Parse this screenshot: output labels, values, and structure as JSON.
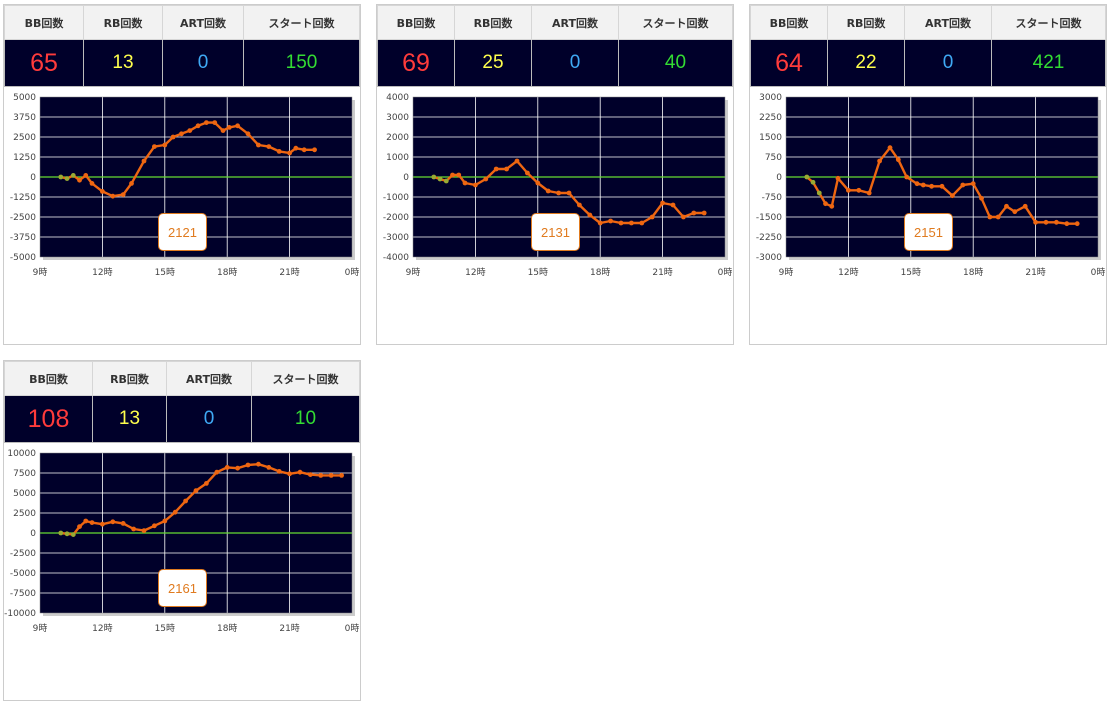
{
  "headers": [
    "BB回数",
    "RB回数",
    "ART回数",
    "スタート回数"
  ],
  "colors": {
    "plot_bg": "#00002a",
    "grid": "#ffffff",
    "zero_line": "#66dd33",
    "series": "#ee6611",
    "series_start": "#99aa33",
    "bb": "#ff3b3b",
    "rb": "#ffff4d",
    "art": "#3fa9f5",
    "start": "#33dd33",
    "button": "#e07b1f"
  },
  "panels": [
    {
      "machine": "2121",
      "stats": {
        "bb": "65",
        "rb": "13",
        "art": "0",
        "start": "150"
      },
      "chart_data": {
        "type": "line",
        "ylim": [
          -5000,
          5000
        ],
        "yticks": [
          "5000",
          "3750",
          "2500",
          "1250",
          "0",
          "-1250",
          "-2500",
          "-3750",
          "-5000"
        ],
        "xticks": [
          "9時",
          "12時",
          "15時",
          "18時",
          "21時",
          "0時"
        ],
        "x": [
          10.0,
          10.3,
          10.6,
          10.9,
          11.2,
          11.5,
          12.0,
          12.5,
          13.0,
          13.4,
          14.0,
          14.5,
          15.0,
          15.4,
          15.8,
          16.2,
          16.6,
          17.0,
          17.4,
          17.8,
          18.1,
          18.5,
          19.0,
          19.5,
          20.0,
          20.5,
          21.0,
          21.3,
          21.7,
          22.2
        ],
        "y": [
          0,
          -100,
          100,
          -200,
          100,
          -400,
          -900,
          -1200,
          -1100,
          -400,
          1000,
          1900,
          2000,
          2500,
          2700,
          2900,
          3200,
          3400,
          3400,
          2900,
          3100,
          3200,
          2700,
          2000,
          1900,
          1600,
          1500,
          1800,
          1700,
          1700
        ]
      }
    },
    {
      "machine": "2131",
      "stats": {
        "bb": "69",
        "rb": "25",
        "art": "0",
        "start": "40"
      },
      "chart_data": {
        "type": "line",
        "ylim": [
          -4000,
          4000
        ],
        "yticks": [
          "4000",
          "3000",
          "2000",
          "1000",
          "0",
          "-1000",
          "-2000",
          "-3000",
          "-4000"
        ],
        "xticks": [
          "9時",
          "12時",
          "15時",
          "18時",
          "21時",
          "0時"
        ],
        "x": [
          10.0,
          10.3,
          10.6,
          10.9,
          11.2,
          11.5,
          12.0,
          12.5,
          13.0,
          13.5,
          14.0,
          14.5,
          15.0,
          15.5,
          16.0,
          16.5,
          17.0,
          17.5,
          18.0,
          18.5,
          19.0,
          19.5,
          20.0,
          20.5,
          21.0,
          21.5,
          22.0,
          22.5,
          23.0
        ],
        "y": [
          0,
          -100,
          -200,
          100,
          100,
          -300,
          -400,
          -100,
          400,
          400,
          800,
          200,
          -300,
          -700,
          -800,
          -800,
          -1400,
          -1900,
          -2300,
          -2200,
          -2300,
          -2300,
          -2300,
          -2000,
          -1300,
          -1400,
          -2000,
          -1800,
          -1800
        ]
      }
    },
    {
      "machine": "2151",
      "stats": {
        "bb": "64",
        "rb": "22",
        "art": "0",
        "start": "421"
      },
      "chart_data": {
        "type": "line",
        "ylim": [
          -3000,
          3000
        ],
        "yticks": [
          "3000",
          "2250",
          "1500",
          "750",
          "0",
          "-750",
          "-1500",
          "-2250",
          "-3000"
        ],
        "xticks": [
          "9時",
          "12時",
          "15時",
          "18時",
          "21時",
          "0時"
        ],
        "x": [
          10.0,
          10.3,
          10.6,
          10.9,
          11.2,
          11.5,
          12.0,
          12.5,
          13.0,
          13.5,
          14.0,
          14.4,
          14.8,
          15.3,
          15.6,
          16.0,
          16.5,
          17.0,
          17.5,
          18.0,
          18.4,
          18.8,
          19.2,
          19.6,
          20.0,
          20.5,
          21.0,
          21.5,
          22.0,
          22.5,
          23.0
        ],
        "y": [
          0,
          -200,
          -600,
          -1000,
          -1100,
          -50,
          -500,
          -500,
          -600,
          600,
          1100,
          650,
          0,
          -250,
          -300,
          -350,
          -350,
          -700,
          -300,
          -250,
          -800,
          -1500,
          -1500,
          -1100,
          -1300,
          -1100,
          -1700,
          -1700,
          -1700,
          -1750,
          -1750
        ]
      }
    },
    {
      "machine": "2161",
      "stats": {
        "bb": "108",
        "rb": "13",
        "art": "0",
        "start": "10"
      },
      "chart_data": {
        "type": "line",
        "ylim": [
          -10000,
          10000
        ],
        "yticks": [
          "10000",
          "7500",
          "5000",
          "2500",
          "0",
          "-2500",
          "-5000",
          "-7500",
          "-10000"
        ],
        "xticks": [
          "9時",
          "12時",
          "15時",
          "18時",
          "21時",
          "0時"
        ],
        "x": [
          10.0,
          10.3,
          10.6,
          10.9,
          11.2,
          11.5,
          12.0,
          12.5,
          13.0,
          13.5,
          14.0,
          14.5,
          15.0,
          15.5,
          16.0,
          16.5,
          17.0,
          17.5,
          18.0,
          18.5,
          19.0,
          19.5,
          20.0,
          20.5,
          21.0,
          21.5,
          22.0,
          22.5,
          23.0,
          23.5
        ],
        "y": [
          0,
          -100,
          -200,
          800,
          1500,
          1300,
          1100,
          1400,
          1200,
          500,
          300,
          900,
          1500,
          2600,
          4000,
          5300,
          6200,
          7600,
          8200,
          8100,
          8500,
          8600,
          8200,
          7700,
          7400,
          7600,
          7300,
          7200,
          7200,
          7200
        ]
      }
    }
  ]
}
